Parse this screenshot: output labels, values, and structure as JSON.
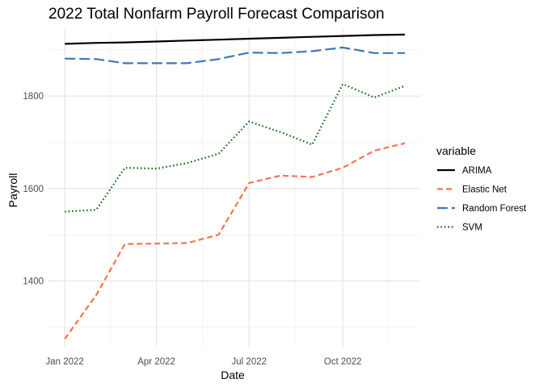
{
  "chart_data": {
    "type": "line",
    "title": "2022 Total Nonfarm Payroll Forecast Comparison",
    "xlabel": "Date",
    "ylabel": "Payroll",
    "x": [
      "2022-01",
      "2022-02",
      "2022-03",
      "2022-04",
      "2022-05",
      "2022-06",
      "2022-07",
      "2022-08",
      "2022-09",
      "2022-10",
      "2022-11",
      "2022-12"
    ],
    "x_ticks": [
      {
        "date": "2022-01",
        "label": "Jan 2022"
      },
      {
        "date": "2022-04",
        "label": "Apr 2022"
      },
      {
        "date": "2022-07",
        "label": "Jul 2022"
      },
      {
        "date": "2022-10",
        "label": "Oct 2022"
      }
    ],
    "y_ticks": [
      1400,
      1600,
      1800
    ],
    "ylim": [
      1258,
      1945
    ],
    "xlim": [
      "2021-12-16",
      "2022-12-16"
    ],
    "grid": true,
    "legend": {
      "title": "variable",
      "position": "right"
    },
    "series": [
      {
        "name": "ARIMA",
        "color": "#000000",
        "dash": "solid",
        "values": [
          1913,
          1915,
          1916,
          1918,
          1920,
          1922,
          1924,
          1926,
          1928,
          1930,
          1932,
          1933
        ]
      },
      {
        "name": "Elastic Net",
        "color": "#f4754d",
        "dash": "dashed",
        "values": [
          1275,
          1370,
          1480,
          1481,
          1482,
          1500,
          1612,
          1628,
          1625,
          1645,
          1682,
          1698
        ]
      },
      {
        "name": "Random Forest",
        "color": "#3d78b5",
        "dash": "longdash",
        "values": [
          1881,
          1880,
          1871,
          1871,
          1871,
          1880,
          1894,
          1893,
          1897,
          1905,
          1893,
          1893
        ]
      },
      {
        "name": "SVM",
        "color": "#006400",
        "dash": "dotted",
        "values": [
          1550,
          1554,
          1645,
          1643,
          1655,
          1675,
          1745,
          1722,
          1695,
          1826,
          1797,
          1822
        ]
      }
    ]
  }
}
